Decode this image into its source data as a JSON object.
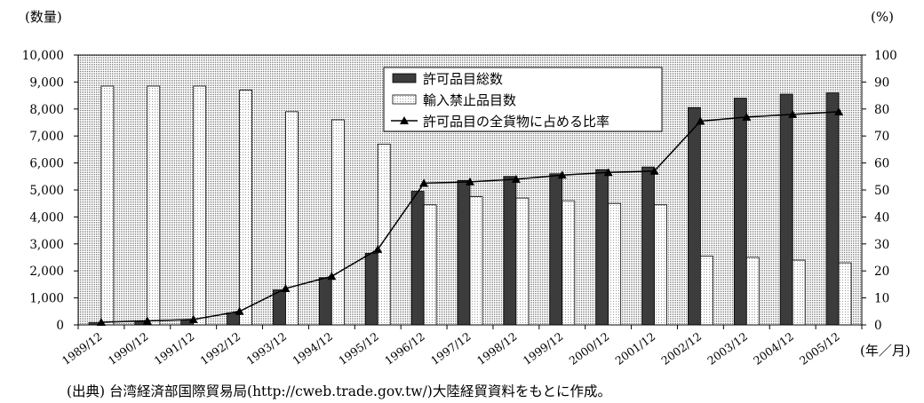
{
  "source": "(出典) 台湾経済部国際貿易局(http://cweb.trade.gov.tw/)大陸経貿資料をもとに作成。",
  "chart_data": {
    "type": "bar",
    "categories": [
      "1989/12",
      "1990/12",
      "1991/12",
      "1992/12",
      "1993/12",
      "1994/12",
      "1995/12",
      "1996/12",
      "1997/12",
      "1998/12",
      "1999/12",
      "2000/12",
      "2001/12",
      "2002/12",
      "2003/12",
      "2004/12",
      "2005/12"
    ],
    "series": [
      {
        "name": "許可品目総数",
        "type": "bar",
        "y_axis": 1,
        "color": "#3c3c3c",
        "values": [
          80,
          130,
          180,
          450,
          1300,
          1750,
          2650,
          4950,
          5350,
          5500,
          5600,
          5750,
          5850,
          8050,
          8400,
          8550,
          8600
        ]
      },
      {
        "name": "輸入禁止品目数",
        "type": "bar",
        "y_axis": 1,
        "color": "#ffffff",
        "values": [
          8850,
          8850,
          8850,
          8700,
          7900,
          7600,
          6700,
          4450,
          4750,
          4700,
          4600,
          4500,
          4450,
          2550,
          2500,
          2400,
          2300
        ]
      },
      {
        "name": "許可品目の全貨物に占める比率",
        "type": "line",
        "marker": "triangle",
        "y_axis": 2,
        "color": "#000000",
        "values": [
          1,
          1.5,
          2,
          5,
          13.5,
          18,
          28,
          52.5,
          53,
          54,
          55.5,
          56.5,
          57,
          75.5,
          77,
          78,
          79
        ]
      }
    ],
    "ylabel": "(数量)",
    "y2label": "(%)",
    "xlabel": "(年／月)",
    "ylim": [
      0,
      10000
    ],
    "y2lim": [
      0,
      100
    ],
    "yticks": [
      "0",
      "1,000",
      "2,000",
      "3,000",
      "4,000",
      "5,000",
      "6,000",
      "7,000",
      "8,000",
      "9,000",
      "10,000"
    ],
    "y2ticks": [
      "0",
      "10",
      "20",
      "30",
      "40",
      "50",
      "60",
      "70",
      "80",
      "90",
      "100"
    ],
    "grid": false,
    "legend": "top-center"
  }
}
